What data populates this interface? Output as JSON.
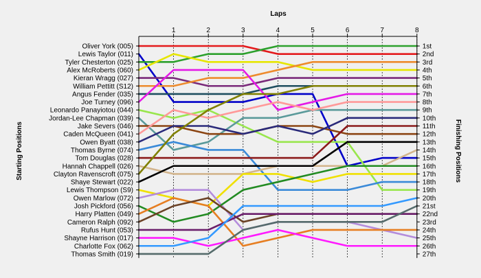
{
  "chart_data": {
    "type": "line",
    "title": "",
    "xlabel": "Laps",
    "ylabel_left": "Starting Positions",
    "ylabel_right": "Finishing Positions",
    "x": [
      0,
      1,
      2,
      3,
      4,
      5,
      6,
      7,
      8
    ],
    "x_tick_labels": [
      "1",
      "2",
      "3",
      "4",
      "5",
      "6",
      "7",
      "8"
    ],
    "positions": 27,
    "grid": true,
    "finishing_labels": [
      "1st",
      "2nd",
      "3rd",
      "4th",
      "5th",
      "6th",
      "7th",
      "8th",
      "9th",
      "10th",
      "11th",
      "12th",
      "13th",
      "14th",
      "15th",
      "16th",
      "17th",
      "18th",
      "19th",
      "20th",
      "21st",
      "22nd",
      "23rd",
      "24th",
      "25th",
      "26th",
      "27th"
    ],
    "series": [
      {
        "name": "Oliver York (005)",
        "color": "#e41a1c",
        "values": [
          1,
          1,
          1,
          1,
          2,
          2,
          2,
          2,
          2
        ]
      },
      {
        "name": "Lewis Taylor (011)",
        "color": "#0000c8",
        "values": [
          2,
          8,
          8,
          8,
          7,
          7,
          16,
          15,
          15
        ]
      },
      {
        "name": "Tyler Chesterton (025)",
        "color": "#2ca02c",
        "values": [
          3,
          3,
          2,
          2,
          1,
          1,
          1,
          1,
          1
        ]
      },
      {
        "name": "Alex McRoberts (060)",
        "color": "#e6e600",
        "values": [
          4,
          2,
          3,
          3,
          3,
          4,
          4,
          4,
          4
        ]
      },
      {
        "name": "Kieran Wragg (027)",
        "color": "#7a2a7a",
        "values": [
          5,
          5,
          6,
          6,
          5,
          5,
          5,
          5,
          5
        ]
      },
      {
        "name": "William Pettitt (S12)",
        "color": "#ed8b2d",
        "values": [
          6,
          6,
          5,
          5,
          4,
          3,
          3,
          3,
          3
        ]
      },
      {
        "name": "Angus Fender (035)",
        "color": "#1f4e5f",
        "values": [
          7,
          7,
          7,
          7,
          6,
          6,
          6,
          6,
          6
        ]
      },
      {
        "name": "Joe Turney (096)",
        "color": "#e41ae6",
        "values": [
          8,
          4,
          4,
          4,
          9,
          8,
          7,
          7,
          7
        ]
      },
      {
        "name": "Leonardo Panayiotou (044)",
        "color": "#99e64d",
        "values": [
          9,
          10,
          9,
          11,
          13,
          13,
          13,
          19,
          19
        ]
      },
      {
        "name": "Jordan-Lee Chapman (039)",
        "color": "#5a9a9a",
        "values": [
          10,
          14,
          13,
          10,
          10,
          9,
          9,
          9,
          9
        ]
      },
      {
        "name": "Jake Severs (046)",
        "color": "#8b4513",
        "values": [
          11,
          11,
          12,
          12,
          11,
          11,
          12,
          12,
          12
        ]
      },
      {
        "name": "Caden McQueen (041)",
        "color": "#ff9999",
        "values": [
          12,
          9,
          10,
          9,
          8,
          9,
          8,
          8,
          8
        ]
      },
      {
        "name": "Owen Byatt (038)",
        "color": "#2a2a7a",
        "values": [
          13,
          11,
          11,
          12,
          11,
          12,
          10,
          10,
          10
        ]
      },
      {
        "name": "Thomas Byrne (074)",
        "color": "#3a8ad8",
        "values": [
          14,
          13,
          14,
          14,
          19,
          19,
          19,
          18,
          18
        ]
      },
      {
        "name": "Tom Douglas (028)",
        "color": "#8b1a1a",
        "values": [
          15,
          15,
          15,
          15,
          15,
          15,
          11,
          11,
          11
        ]
      },
      {
        "name": "Hannah Chappell (026)",
        "color": "#d2b48c",
        "values": [
          16,
          17,
          17,
          17,
          16,
          16,
          16,
          16,
          14
        ]
      },
      {
        "name": "Clayton Ravenscroft (075)",
        "color": "#808000",
        "values": [
          17,
          12,
          9,
          7,
          7,
          6,
          6,
          6,
          6
        ]
      },
      {
        "name": "Shaye Stewart (022)",
        "color": "#000000",
        "values": [
          18,
          16,
          16,
          16,
          16,
          16,
          13,
          13,
          13
        ]
      },
      {
        "name": "Lewis Thompson (S9)",
        "color": "#f0e000",
        "values": [
          19,
          20,
          21,
          17,
          17,
          18,
          17,
          17,
          17
        ]
      },
      {
        "name": "Owen Marlow (072)",
        "color": "#b48cdc",
        "values": [
          20,
          19,
          19,
          24,
          23,
          23,
          23,
          24,
          25
        ]
      },
      {
        "name": "Josh Pickford (056)",
        "color": "#228b22",
        "values": [
          21,
          23,
          22,
          19,
          18,
          17,
          16,
          16,
          16
        ]
      },
      {
        "name": "Harry Platten (049)",
        "color": "#e67e22",
        "values": [
          22,
          20,
          21,
          26,
          25,
          24,
          24,
          24,
          24
        ]
      },
      {
        "name": "Cameron Ralph (092)",
        "color": "#6b4226",
        "values": [
          23,
          21,
          20,
          23,
          22,
          22,
          22,
          22,
          22
        ]
      },
      {
        "name": "Rufus Hunt (053)",
        "color": "#6b1f6b",
        "values": [
          24,
          24,
          24,
          22,
          22,
          22,
          22,
          22,
          22
        ]
      },
      {
        "name": "Shayne Harrison (017)",
        "color": "#ff1aff",
        "values": [
          25,
          25,
          26,
          25,
          24,
          25,
          26,
          26,
          26
        ]
      },
      {
        "name": "Charlotte Fox (062)",
        "color": "#3399ff",
        "values": [
          26,
          26,
          25,
          21,
          21,
          21,
          21,
          21,
          20
        ]
      },
      {
        "name": "Thomas Smith (019)",
        "color": "#556b6b",
        "values": [
          27,
          27,
          27,
          24,
          23,
          23,
          23,
          23,
          21
        ]
      }
    ]
  }
}
